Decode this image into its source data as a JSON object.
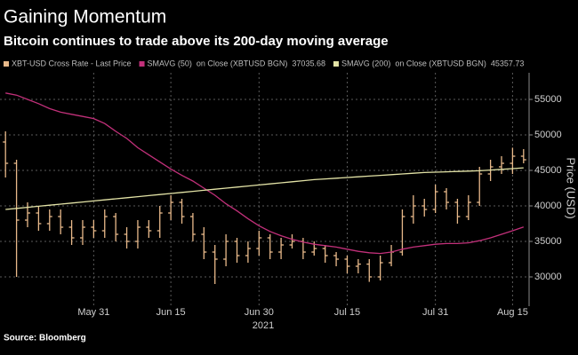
{
  "chart_data": {
    "type": "ohlc",
    "title": "Gaining Momentum",
    "subtitle": "Bitcoin continues to trade above its 200-day moving average",
    "ylabel": "Price (USD)",
    "x_year_label": "2021",
    "source": "Source: Bloomberg",
    "ylim": [
      26500,
      58750
    ],
    "yticks": [
      30000,
      35000,
      40000,
      45000,
      50000,
      55000
    ],
    "grid": true,
    "categories": [
      null,
      null,
      null,
      null,
      null,
      null,
      null,
      null,
      "May 31",
      null,
      null,
      null,
      null,
      null,
      null,
      "Jun 15",
      null,
      null,
      null,
      null,
      null,
      null,
      null,
      "Jun 30",
      null,
      null,
      null,
      null,
      null,
      null,
      null,
      "Jul 15",
      null,
      null,
      null,
      null,
      null,
      null,
      null,
      "Jul 31",
      null,
      null,
      null,
      null,
      null,
      null,
      "Aug 15",
      null
    ],
    "series": [
      {
        "name": "XBT-USD Cross Rate - Last Price",
        "type": "ohlc",
        "color": "#e8b98a",
        "open": [
          49000,
          46000,
          38000,
          39000,
          37500,
          38500,
          37000,
          35500,
          37000,
          36500,
          38500,
          36000,
          35000,
          37000,
          36500,
          39000,
          40500,
          38500,
          36000,
          33500,
          32500,
          35000,
          33000,
          34000,
          35500,
          33500,
          34500,
          35000,
          33500,
          34000,
          33000,
          32500,
          31500,
          31800,
          30000,
          32000,
          33500,
          38500,
          40000,
          39500,
          42000,
          40500,
          38500,
          40500,
          44500,
          45500,
          46000,
          47000
        ],
        "high": [
          50500,
          46500,
          40500,
          40000,
          39500,
          39500,
          38000,
          38000,
          38000,
          39500,
          39000,
          37000,
          38000,
          38000,
          40000,
          41500,
          41000,
          39000,
          37000,
          34500,
          36000,
          35500,
          35000,
          36500,
          36000,
          35500,
          36000,
          35500,
          35000,
          34500,
          33500,
          33000,
          32500,
          32500,
          33000,
          34500,
          39500,
          41500,
          41000,
          43000,
          42500,
          41000,
          41500,
          45500,
          46500,
          47000,
          48200,
          48000
        ],
        "low": [
          44000,
          30000,
          37000,
          36500,
          36500,
          36000,
          34500,
          34500,
          35500,
          35500,
          35000,
          34000,
          34000,
          35500,
          35500,
          38000,
          37500,
          35000,
          32500,
          29000,
          31500,
          32000,
          32000,
          33000,
          32500,
          32500,
          34000,
          32500,
          33000,
          32000,
          31500,
          30500,
          30500,
          29300,
          29500,
          31500,
          33000,
          37500,
          38500,
          39000,
          39500,
          37500,
          38000,
          40000,
          43500,
          44500,
          44500,
          46000
        ],
        "close": [
          46000,
          38000,
          39000,
          37500,
          38500,
          37000,
          35500,
          37000,
          36500,
          38500,
          36000,
          35000,
          37000,
          36500,
          39000,
          40500,
          38500,
          36000,
          33500,
          32500,
          35000,
          33000,
          34000,
          35500,
          33500,
          34500,
          35000,
          33500,
          34000,
          33000,
          32500,
          31500,
          31800,
          30000,
          32000,
          33500,
          38500,
          40000,
          39500,
          42000,
          40500,
          38500,
          40500,
          44500,
          45500,
          46000,
          47000,
          46500
        ]
      },
      {
        "name": "SMAVG (50)",
        "legend_detail": "on Close (XBTUSD BGN)",
        "type": "line",
        "color": "#c2307a",
        "values": [
          55900,
          55600,
          55000,
          54400,
          53700,
          53200,
          52900,
          52600,
          52300,
          51600,
          50500,
          49500,
          48200,
          47200,
          46200,
          45200,
          44300,
          43500,
          42500,
          41500,
          40300,
          39300,
          38200,
          37200,
          36400,
          35800,
          35300,
          34900,
          34600,
          34400,
          34200,
          33900,
          33600,
          33400,
          33300,
          33500,
          33900,
          34200,
          34400,
          34600,
          34700,
          34700,
          34800,
          35100,
          35500,
          36000,
          36500,
          37035.68
        ]
      },
      {
        "name": "SMAVG (200)",
        "legend_detail": "on Close (XBTUSD BGN)",
        "type": "line",
        "color": "#e3e3a6",
        "values": [
          39500,
          39650,
          39800,
          39950,
          40100,
          40250,
          40400,
          40550,
          40700,
          40850,
          41000,
          41150,
          41300,
          41450,
          41600,
          41750,
          41900,
          42050,
          42200,
          42350,
          42500,
          42650,
          42800,
          42950,
          43100,
          43250,
          43400,
          43550,
          43700,
          43800,
          43900,
          44000,
          44100,
          44200,
          44300,
          44400,
          44500,
          44600,
          44700,
          44750,
          44800,
          44850,
          44900,
          44950,
          45050,
          45150,
          45250,
          45357.73
        ]
      }
    ]
  }
}
